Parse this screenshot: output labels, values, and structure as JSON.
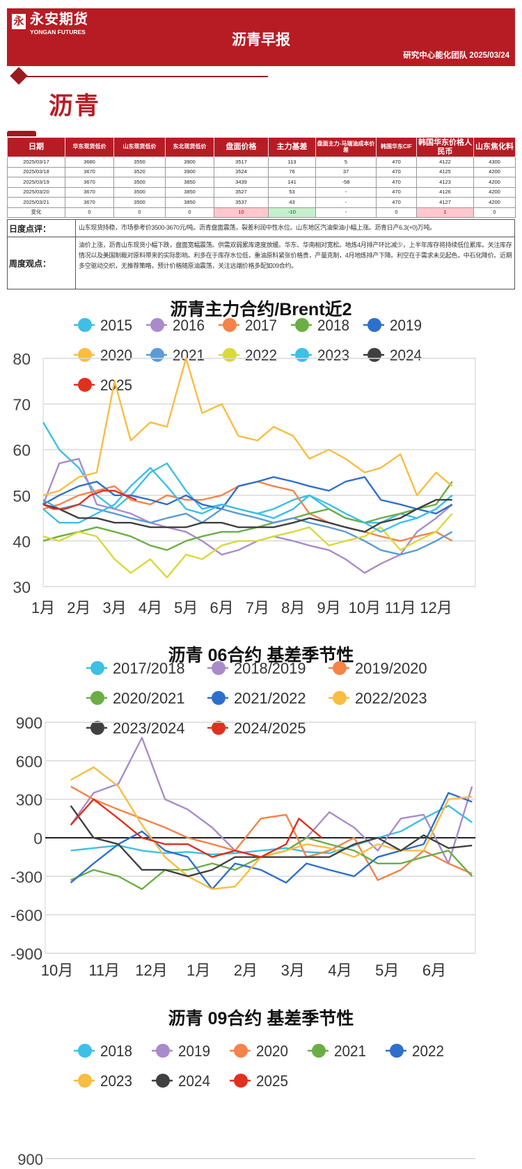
{
  "header": {
    "logo_mark": "永",
    "logo_cn": "永安期货",
    "logo_en": "YONGAN FUTURES",
    "title": "沥青早报",
    "subtitle": "研究中心能化团队  2025/03/24"
  },
  "section_title": "沥青",
  "colors": {
    "brand": "#B71C24",
    "up_bg": "#FFC7CE",
    "down_bg": "#C6EFCE"
  },
  "table": {
    "columns": [
      "日期",
      "华东现货低价",
      "山东现货低价",
      "东北现货低价",
      "盘面价格",
      "主力基差",
      "盘面主力-马瑞油成本价差",
      "韩国华东CIF",
      "韩国华东价格人民币",
      "山东焦化料"
    ],
    "rows": [
      [
        "2025/03/17",
        "3680",
        "3550",
        "3900",
        "3517",
        "113",
        "5",
        "470",
        "4122",
        "4300"
      ],
      [
        "2025/03/18",
        "3670",
        "3520",
        "3900",
        "3524",
        "76",
        "37",
        "470",
        "4125",
        "4200"
      ],
      [
        "2025/03/19",
        "3670",
        "3500",
        "3850",
        "3439",
        "141",
        "-58",
        "470",
        "4123",
        "4200"
      ],
      [
        "2025/03/20",
        "3670",
        "3500",
        "3850",
        "3527",
        "53",
        "-",
        "470",
        "4126",
        "4200"
      ],
      [
        "2025/03/21",
        "3670",
        "3500",
        "3850",
        "3537",
        "43",
        "-",
        "470",
        "4127",
        "4200"
      ]
    ],
    "change_row": [
      "变化",
      "0",
      "0",
      "0",
      "10",
      "-10",
      "-",
      "0",
      "1",
      "0"
    ],
    "change_status": [
      "",
      "",
      "",
      "",
      "up",
      "down",
      "",
      "",
      "up",
      ""
    ]
  },
  "comments": {
    "daily_label": "日度点评：",
    "daily_text": "山东现货持稳，市场参考价3500-3670元/吨。沥青盘面震荡，裂差利润中性水位。山东地区汽油柴油小幅上涨。沥青日产6.3(+0)万吨。",
    "weekly_label": "周度观点：",
    "weekly_text": "油价上涨，沥青山东现货小幅下跌，盘面宽幅震荡。供需双弱累库速度放缓。华东、华南相对宽松。地炼4月排产环比减少，上半年库存将持续低位累库。关注库存情况以及美国制裁对原料带来的实际影响。利多在于库存水位低，重油原料紧张价格贵，产量克制，4月地炼排产下降。利空在于需求未见起色，中石化降价。近期多空驱动交织，无推荐策略，预计价格随原油震荡，关注远端价格多配如09合约。"
  },
  "chart_data": [
    {
      "type": "line",
      "title": "沥青主力合约/Brent近2",
      "ylim": [
        30,
        80
      ],
      "yticks": [
        "30",
        "40",
        "50",
        "60",
        "70",
        "80"
      ],
      "xticks": [
        "1月",
        "2月",
        "3月",
        "4月",
        "5月",
        "6月",
        "7月",
        "8月",
        "9月",
        "10月",
        "11月",
        "12月"
      ],
      "grid": true,
      "legend": "top",
      "x": [
        "01-01",
        "01-15",
        "02-01",
        "02-15",
        "03-01",
        "03-15",
        "04-01",
        "04-15",
        "05-01",
        "05-15",
        "06-01",
        "06-15",
        "07-01",
        "07-15",
        "08-01",
        "08-15",
        "09-01",
        "09-15",
        "10-01",
        "10-15",
        "11-01",
        "11-15",
        "12-01",
        "12-15"
      ],
      "series": [
        {
          "name": "2015",
          "color": "#3DBFE6",
          "values": [
            66,
            60,
            56,
            50,
            47,
            50,
            55,
            57,
            51,
            47,
            48,
            47,
            46,
            47,
            49,
            50,
            47,
            45,
            44,
            44,
            46,
            45,
            47,
            50
          ]
        },
        {
          "name": "2016",
          "color": "#A98BCB",
          "values": [
            48,
            57,
            58,
            48,
            47,
            46,
            44,
            43,
            42,
            40,
            37,
            38,
            40,
            41,
            40,
            39,
            38,
            36,
            33,
            35,
            37,
            42,
            45,
            48
          ]
        },
        {
          "name": "2017",
          "color": "#F5834A",
          "values": [
            47,
            48,
            50,
            51,
            52,
            49,
            48,
            50,
            49,
            49,
            50,
            52,
            53,
            52,
            51,
            46,
            44,
            43,
            42,
            41,
            40,
            41,
            42,
            40
          ]
        },
        {
          "name": "2018",
          "color": "#6BAE45",
          "values": [
            40,
            41,
            42,
            43,
            42,
            41,
            39,
            38,
            40,
            41,
            42,
            42,
            43,
            44,
            45,
            46,
            47,
            45,
            44,
            45,
            46,
            47,
            48,
            53
          ]
        },
        {
          "name": "2019",
          "color": "#2F6FCC",
          "values": [
            48,
            50,
            52,
            53,
            50,
            50,
            49,
            48,
            50,
            48,
            47,
            52,
            53,
            54,
            53,
            52,
            51,
            53,
            54,
            49,
            48,
            47,
            46,
            48
          ]
        },
        {
          "name": "2020",
          "color": "#F8BD41",
          "values": [
            50,
            51,
            54,
            55,
            75,
            62,
            66,
            65,
            80,
            68,
            70,
            63,
            62,
            65,
            63,
            58,
            60,
            58,
            55,
            56,
            59,
            50,
            55,
            52
          ]
        },
        {
          "name": "2021",
          "color": "#5B9BD5",
          "values": [
            49,
            47,
            48,
            47,
            46,
            45,
            44,
            45,
            46,
            44,
            47,
            46,
            45,
            44,
            45,
            44,
            43,
            42,
            40,
            38,
            37,
            38,
            40,
            42
          ]
        },
        {
          "name": "2022",
          "color": "#D8D93A",
          "values": [
            41,
            40,
            42,
            41,
            36,
            33,
            36,
            32,
            37,
            36,
            39,
            40,
            40,
            41,
            42,
            43,
            39,
            40,
            41,
            43,
            38,
            40,
            42,
            46
          ]
        },
        {
          "name": "2023",
          "color": "#3DBFE6",
          "values": [
            47,
            44,
            44,
            46,
            48,
            52,
            56,
            52,
            47,
            46,
            48,
            47,
            46,
            45,
            47,
            50,
            48,
            46,
            44,
            42,
            44,
            45,
            47,
            50
          ]
        },
        {
          "name": "2024",
          "color": "#404040",
          "values": [
            48,
            47,
            45,
            45,
            44,
            44,
            43,
            43,
            43,
            44,
            44,
            43,
            43,
            43,
            44,
            45,
            44,
            43,
            42,
            44,
            45,
            47,
            49,
            49
          ]
        },
        {
          "name": "2025",
          "color": "#E0301E",
          "x": [
            "01-01",
            "01-10",
            "01-20",
            "02-01",
            "02-10",
            "02-20",
            "03-01",
            "03-10",
            "03-20"
          ],
          "values": [
            48,
            47,
            47,
            48,
            50,
            51,
            51,
            50,
            49
          ]
        }
      ]
    },
    {
      "type": "line",
      "title": "沥青 06合约 基差季节性",
      "ylim": [
        -900,
        900
      ],
      "yticks": [
        "-900",
        "-600",
        "-300",
        "0",
        "300",
        "600",
        "900"
      ],
      "xticks": [
        "10月",
        "11月",
        "12月",
        "1月",
        "2月",
        "3月",
        "4月",
        "5月",
        "6月"
      ],
      "grid": true,
      "legend": "top",
      "x": [
        "10-10",
        "10-25",
        "11-10",
        "11-25",
        "12-10",
        "12-25",
        "01-10",
        "01-25",
        "02-10",
        "02-25",
        "03-10",
        "03-25",
        "04-10",
        "04-25",
        "05-10",
        "05-25",
        "06-10",
        "06-25"
      ],
      "series": [
        {
          "name": "2017/2018",
          "color": "#3DBFE6",
          "values": [
            -100,
            -80,
            -60,
            -100,
            -120,
            -110,
            -130,
            -120,
            -100,
            -80,
            -110,
            -120,
            -60,
            0,
            50,
            150,
            250,
            120
          ]
        },
        {
          "name": "2018/2019",
          "color": "#A98BCB",
          "values": [
            100,
            350,
            420,
            780,
            300,
            220,
            80,
            -100,
            -150,
            -100,
            0,
            200,
            80,
            -100,
            150,
            180,
            -200,
            400
          ]
        },
        {
          "name": "2019/2020",
          "color": "#F5834A",
          "values": [
            400,
            300,
            220,
            150,
            80,
            0,
            -50,
            -100,
            150,
            180,
            -150,
            -100,
            0,
            -330,
            -250,
            -100,
            -200,
            -280
          ]
        },
        {
          "name": "2020/2021",
          "color": "#6BAE45",
          "values": [
            -330,
            -250,
            -300,
            -400,
            -250,
            -250,
            -200,
            -250,
            -150,
            -100,
            0,
            -50,
            -100,
            -200,
            -200,
            -150,
            -100,
            -300
          ]
        },
        {
          "name": "2021/2022",
          "color": "#2F6FCC",
          "values": [
            -350,
            -200,
            -50,
            50,
            -100,
            -150,
            -400,
            -200,
            -250,
            -350,
            -200,
            -250,
            -300,
            -150,
            -100,
            -50,
            350,
            280
          ]
        },
        {
          "name": "2022/2023",
          "color": "#F8BD41",
          "values": [
            450,
            550,
            400,
            100,
            -150,
            -300,
            -400,
            -380,
            -150,
            -100,
            -50,
            -80,
            -150,
            -50,
            -100,
            -100,
            300,
            320
          ]
        },
        {
          "name": "2023/2024",
          "color": "#404040",
          "values": [
            250,
            0,
            -50,
            -250,
            -250,
            -300,
            -250,
            -150,
            -150,
            -150,
            -150,
            -150,
            -50,
            0,
            -100,
            20,
            -80,
            -60
          ]
        },
        {
          "name": "2024/2025",
          "color": "#E0301E",
          "x": [
            "10-10",
            "10-25",
            "11-10",
            "11-25",
            "12-10",
            "12-25",
            "01-10",
            "01-25",
            "02-10",
            "02-25",
            "03-05",
            "03-20"
          ],
          "values": [
            100,
            300,
            150,
            0,
            -50,
            -50,
            -150,
            -100,
            -150,
            -50,
            150,
            0
          ]
        }
      ]
    },
    {
      "type": "line",
      "title": "沥青 09合约 基差季节性",
      "yticks": [
        "900"
      ],
      "legend": "top",
      "series": [
        {
          "name": "2018",
          "color": "#3DBFE6",
          "values": []
        },
        {
          "name": "2019",
          "color": "#A98BCB",
          "values": []
        },
        {
          "name": "2020",
          "color": "#F5834A",
          "values": []
        },
        {
          "name": "2021",
          "color": "#6BAE45",
          "values": []
        },
        {
          "name": "2022",
          "color": "#2F6FCC",
          "values": []
        },
        {
          "name": "2023",
          "color": "#F8BD41",
          "values": []
        },
        {
          "name": "2024",
          "color": "#404040",
          "values": []
        },
        {
          "name": "2025",
          "color": "#E0301E",
          "values": []
        }
      ]
    }
  ]
}
